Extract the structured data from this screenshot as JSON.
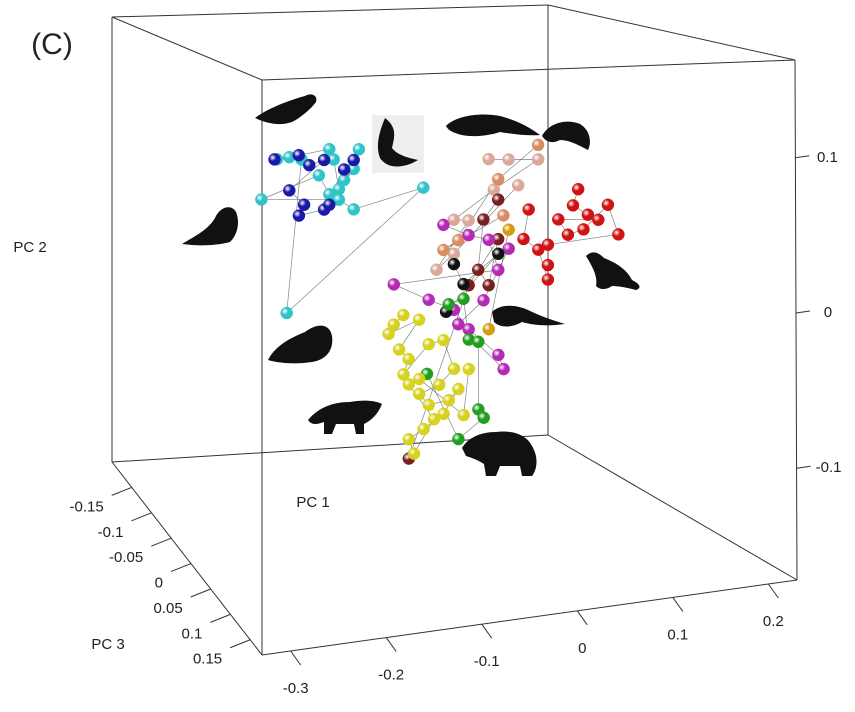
{
  "chart_data": {
    "type": "scatter3d",
    "panel_label": "(C)",
    "xlabel": "PC 1",
    "ylabel": "PC 2",
    "zlabel": "PC 3",
    "xlim": [
      -0.33,
      0.23
    ],
    "ylim": [
      -0.172,
      0.163
    ],
    "zlim": [
      -0.2,
      0.18
    ],
    "xticks": [
      -0.3,
      -0.2,
      -0.1,
      0,
      0.1,
      0.2
    ],
    "yticks": [
      -0.1,
      0,
      0.1
    ],
    "zticks": [
      -0.15,
      -0.1,
      -0.05,
      0,
      0.05,
      0.1,
      0.15
    ],
    "series": [
      {
        "color": "#2ec4c8",
        "x": [
          -0.231,
          -0.217,
          -0.171,
          -0.166,
          -0.16,
          -0.143,
          -0.154,
          -0.137,
          -0.171,
          -0.183,
          -0.249,
          -0.16,
          -0.143,
          -0.063,
          -0.22,
          -0.203
        ],
        "y": [
          0.089,
          0.09,
          0.094,
          0.087,
          0.067,
          0.08,
          0.073,
          0.093,
          0.064,
          0.077,
          0.063,
          0.06,
          0.053,
          0.065,
          -0.013,
          0.088
        ],
        "z": [
          0,
          0,
          0,
          0,
          0,
          0,
          0,
          0,
          0,
          0,
          0,
          0,
          0,
          0,
          0,
          0
        ]
      },
      {
        "color": "#1a1aa8",
        "x": [
          -0.234,
          -0.206,
          -0.194,
          -0.177,
          -0.217,
          -0.2,
          -0.206,
          -0.177,
          -0.143,
          -0.154,
          -0.171
        ],
        "y": [
          0.089,
          0.091,
          0.084,
          0.087,
          0.068,
          0.058,
          0.051,
          0.054,
          0.086,
          0.08,
          0.057
        ],
        "z": [
          0,
          0,
          0,
          0,
          0,
          0,
          0,
          0,
          0,
          0,
          0
        ]
      },
      {
        "color": "#d9a89a",
        "x": [
          0.012,
          0.035,
          0.069,
          0.018,
          -0.028,
          -0.011,
          -0.048,
          -0.028,
          0.046
        ],
        "y": [
          0.082,
          0.081,
          0.08,
          0.061,
          0.042,
          0.041,
          0.009,
          0.019,
          0.063
        ],
        "z": [
          0,
          0,
          0,
          0,
          0,
          0,
          0,
          0,
          0
        ]
      },
      {
        "color": "#d98c62",
        "x": [
          0.069,
          0.023,
          -0.023,
          -0.04,
          0.029
        ],
        "y": [
          0.09,
          0.068,
          0.028,
          0.022,
          0.043
        ],
        "z": [
          0,
          0,
          0,
          0,
          0
        ]
      },
      {
        "color": "#d01212",
        "x": [
          0.115,
          0.109,
          0.126,
          0.138,
          0.092,
          0.103,
          0.121,
          0.149,
          0.161,
          0.08,
          0.08,
          0.08,
          0.069,
          0.052,
          0.058
        ],
        "y": [
          0.058,
          0.047,
          0.04,
          0.036,
          0.038,
          0.027,
          0.03,
          0.046,
          0.025,
          0.021,
          0.007,
          -0.003,
          0.018,
          0.026,
          0.046
        ],
        "z": [
          0,
          0,
          0,
          0,
          0,
          0,
          0,
          0,
          0,
          0,
          0,
          0,
          0,
          0,
          0
        ]
      },
      {
        "color": "#7a1e1e",
        "x": [
          0.023,
          0.006,
          0.0,
          0.012,
          0.023,
          -0.011,
          -0.08
        ],
        "y": [
          0.054,
          0.041,
          0.007,
          -0.004,
          0.027,
          -0.003,
          -0.117
        ],
        "z": [
          0,
          0,
          0,
          0,
          0,
          0,
          0
        ]
      },
      {
        "color": "#b52ab5",
        "x": [
          -0.04,
          -0.011,
          0.012,
          0.023,
          -0.097,
          -0.057,
          -0.028,
          -0.011,
          0.023,
          0.029,
          -0.023,
          0.006,
          0.035
        ],
        "y": [
          0.039,
          0.031,
          0.027,
          0.006,
          0.001,
          -0.011,
          -0.019,
          -0.033,
          -0.052,
          -0.062,
          -0.029,
          -0.014,
          0.02
        ],
        "z": [
          0,
          0,
          0,
          0,
          0,
          0,
          0,
          0,
          0,
          0,
          0,
          0,
          0
        ]
      },
      {
        "color": "#111111",
        "x": [
          -0.028,
          -0.017,
          0.023,
          -0.037
        ],
        "y": [
          0.012,
          -0.002,
          0.017,
          -0.02
        ],
        "z": [
          0,
          0,
          0,
          0
        ]
      },
      {
        "color": "#1f9e1f",
        "x": [
          -0.034,
          -0.017,
          -0.011,
          0.0,
          0.0,
          0.006,
          -0.023,
          -0.059
        ],
        "y": [
          -0.015,
          -0.012,
          -0.04,
          -0.042,
          -0.088,
          -0.094,
          -0.107,
          -0.061
        ],
        "z": [
          0,
          0,
          0,
          0,
          0,
          0,
          0,
          0
        ]
      },
      {
        "color": "#d49a10",
        "x": [
          0.035,
          0.012
        ],
        "y": [
          0.033,
          -0.034
        ],
        "z": [
          0,
          0
        ]
      },
      {
        "color": "#d6d21e",
        "x": [
          -0.086,
          -0.097,
          -0.103,
          -0.068,
          -0.091,
          -0.08,
          -0.086,
          -0.057,
          -0.04,
          -0.028,
          -0.045,
          -0.068,
          -0.057,
          -0.034,
          -0.023,
          -0.04,
          -0.063,
          -0.08,
          -0.074,
          -0.051,
          -0.08,
          -0.068,
          -0.017,
          -0.011
        ],
        "y": [
          -0.02,
          -0.026,
          -0.032,
          -0.024,
          -0.043,
          -0.05,
          -0.06,
          -0.041,
          -0.039,
          -0.059,
          -0.069,
          -0.074,
          -0.082,
          -0.08,
          -0.073,
          -0.089,
          -0.098,
          -0.104,
          -0.114,
          -0.092,
          -0.067,
          -0.064,
          -0.091,
          -0.06
        ],
        "z": [
          0,
          0,
          0,
          0,
          0,
          0,
          0,
          0,
          0,
          0,
          0,
          0,
          0,
          0,
          0,
          0,
          0,
          0,
          0,
          0,
          0,
          0,
          0,
          0
        ]
      }
    ]
  }
}
